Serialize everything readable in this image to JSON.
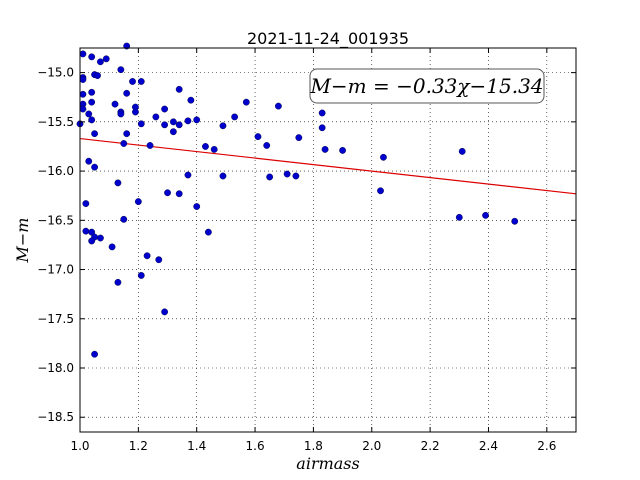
{
  "chart_data": {
    "type": "scatter",
    "title": "2021-11-24_001935",
    "xlabel": "airmass",
    "ylabel": "M−m",
    "xlim": [
      1.0,
      2.7
    ],
    "ylim": [
      -18.65,
      -14.75
    ],
    "y_inverted": true,
    "grid": true,
    "xticks": [
      1.0,
      1.2,
      1.4,
      1.6,
      1.8,
      2.0,
      2.2,
      2.4,
      2.6
    ],
    "xtick_labels": [
      "1.0",
      "1.2",
      "1.4",
      "1.6",
      "1.8",
      "2.0",
      "2.2",
      "2.4",
      "2.6"
    ],
    "yticks": [
      -15.0,
      -15.5,
      -16.0,
      -16.5,
      -17.0,
      -17.5,
      -18.0,
      -18.5
    ],
    "ytick_labels": [
      "−15.0",
      "−15.5",
      "−16.0",
      "−16.5",
      "−17.0",
      "−17.5",
      "−18.0",
      "−18.5"
    ],
    "annotation": "M−m = −0.33χ−15.34",
    "marker_color": "#0000cc",
    "fit_color": "#dd0000",
    "fit_line": {
      "slope": -0.33,
      "intercept": -15.34
    },
    "points": [
      [
        1.01,
        -14.81
      ],
      [
        1.04,
        -14.84
      ],
      [
        1.07,
        -14.89
      ],
      [
        1.09,
        -14.86
      ],
      [
        1.16,
        -14.73
      ],
      [
        1.01,
        -15.05
      ],
      [
        1.01,
        -15.07
      ],
      [
        1.05,
        -15.02
      ],
      [
        1.06,
        -15.03
      ],
      [
        1.14,
        -14.97
      ],
      [
        1.18,
        -15.09
      ],
      [
        1.21,
        -15.09
      ],
      [
        1.01,
        -15.22
      ],
      [
        1.01,
        -15.32
      ],
      [
        1.01,
        -15.37
      ],
      [
        1.0,
        -15.52
      ],
      [
        1.04,
        -15.2
      ],
      [
        1.04,
        -15.3
      ],
      [
        1.03,
        -15.42
      ],
      [
        1.04,
        -15.48
      ],
      [
        1.05,
        -15.62
      ],
      [
        1.12,
        -15.32
      ],
      [
        1.14,
        -15.4
      ],
      [
        1.14,
        -15.42
      ],
      [
        1.16,
        -15.21
      ],
      [
        1.19,
        -15.35
      ],
      [
        1.19,
        -15.4
      ],
      [
        1.21,
        -15.52
      ],
      [
        1.16,
        -15.62
      ],
      [
        1.15,
        -15.72
      ],
      [
        1.03,
        -15.9
      ],
      [
        1.05,
        -15.96
      ],
      [
        1.26,
        -15.45
      ],
      [
        1.29,
        -15.37
      ],
      [
        1.29,
        -15.53
      ],
      [
        1.32,
        -15.5
      ],
      [
        1.32,
        -15.6
      ],
      [
        1.34,
        -15.17
      ],
      [
        1.34,
        -15.53
      ],
      [
        1.37,
        -15.49
      ],
      [
        1.38,
        -15.28
      ],
      [
        1.4,
        -15.48
      ],
      [
        1.24,
        -15.74
      ],
      [
        1.43,
        -15.75
      ],
      [
        1.46,
        -15.78
      ],
      [
        1.49,
        -15.54
      ],
      [
        1.53,
        -15.45
      ],
      [
        1.57,
        -15.3
      ],
      [
        1.61,
        -15.65
      ],
      [
        1.64,
        -15.74
      ],
      [
        1.68,
        -15.34
      ],
      [
        1.75,
        -15.66
      ],
      [
        1.83,
        -15.41
      ],
      [
        1.83,
        -15.56
      ],
      [
        1.84,
        -15.78
      ],
      [
        1.9,
        -15.79
      ],
      [
        2.04,
        -15.86
      ],
      [
        2.31,
        -15.8
      ],
      [
        1.13,
        -16.12
      ],
      [
        1.2,
        -16.31
      ],
      [
        1.3,
        -16.22
      ],
      [
        1.34,
        -16.23
      ],
      [
        1.37,
        -16.04
      ],
      [
        1.49,
        -16.05
      ],
      [
        1.65,
        -16.06
      ],
      [
        1.71,
        -16.03
      ],
      [
        1.74,
        -16.05
      ],
      [
        2.03,
        -16.2
      ],
      [
        1.4,
        -16.36
      ],
      [
        1.02,
        -16.33
      ],
      [
        1.15,
        -16.49
      ],
      [
        1.02,
        -16.61
      ],
      [
        1.04,
        -16.62
      ],
      [
        1.05,
        -16.67
      ],
      [
        1.04,
        -16.71
      ],
      [
        1.07,
        -16.68
      ],
      [
        1.11,
        -16.77
      ],
      [
        1.44,
        -16.62
      ],
      [
        1.23,
        -16.86
      ],
      [
        1.27,
        -16.9
      ],
      [
        2.3,
        -16.47
      ],
      [
        2.39,
        -16.45
      ],
      [
        2.49,
        -16.51
      ],
      [
        1.21,
        -17.06
      ],
      [
        1.13,
        -17.13
      ],
      [
        1.29,
        -17.43
      ],
      [
        1.05,
        -17.86
      ]
    ]
  }
}
